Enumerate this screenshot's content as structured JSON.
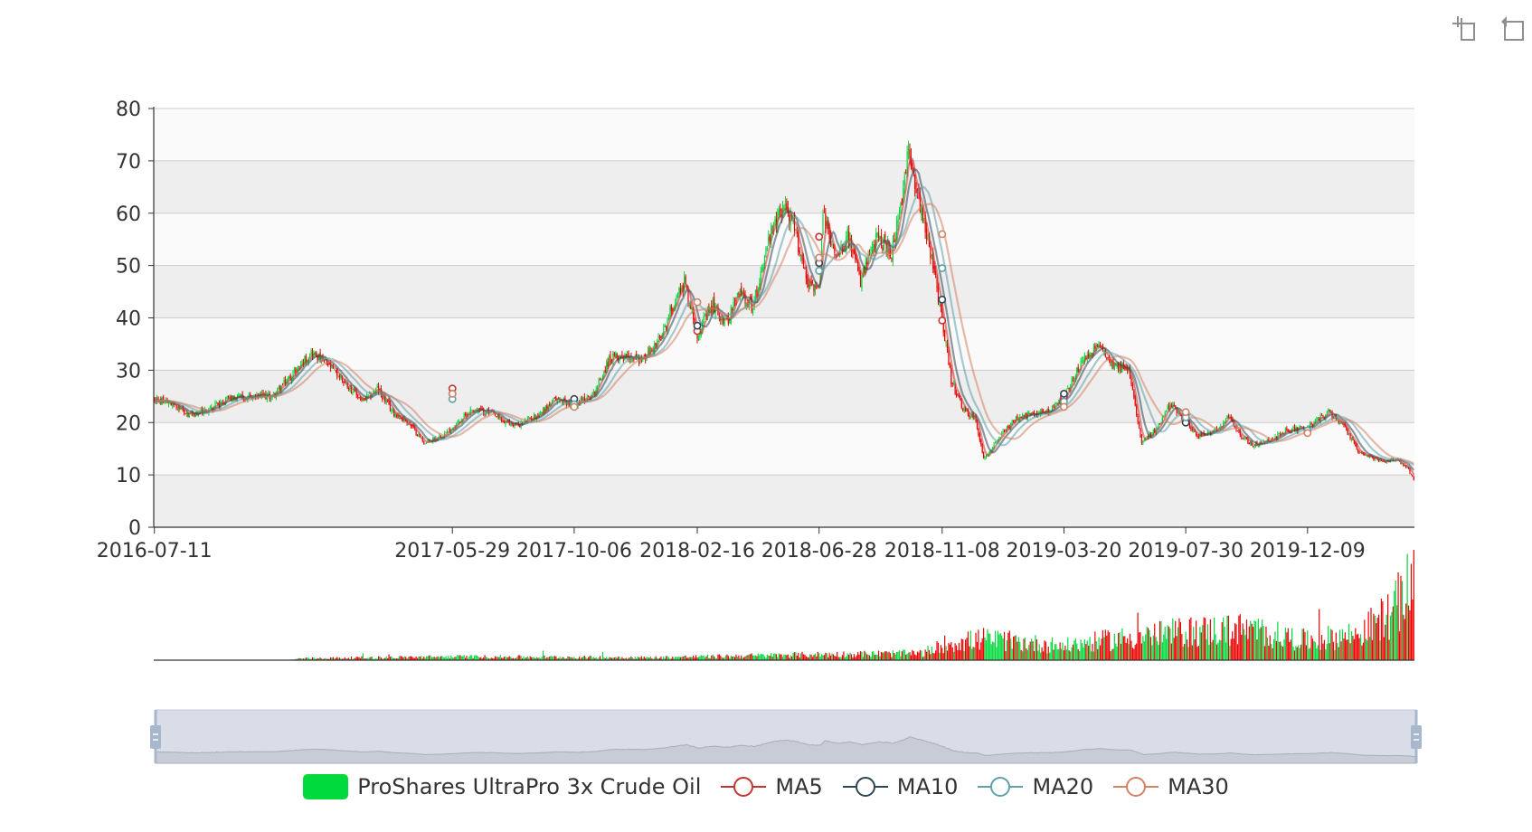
{
  "toolbox": {
    "items": [
      "zoom-icon",
      "restore-icon"
    ]
  },
  "colors": {
    "up": "#00da3c",
    "down": "#ec0000",
    "ma5": "#c23531",
    "ma10": "#2f4554",
    "ma20": "#61a0a8",
    "ma30": "#d48265",
    "grid_band": "#eeeeee",
    "grid_line": "#cccccc",
    "slider_fill": "#d8dde8",
    "slider_border": "#c3cad9"
  },
  "legend": {
    "items": [
      {
        "label": "ProShares UltraPro 3x Crude Oil",
        "kind": "bar",
        "color": "#00da3c"
      },
      {
        "label": "MA5",
        "kind": "line",
        "color": "#c23531"
      },
      {
        "label": "MA10",
        "kind": "line",
        "color": "#2f4554"
      },
      {
        "label": "MA20",
        "kind": "line",
        "color": "#61a0a8"
      },
      {
        "label": "MA30",
        "kind": "line",
        "color": "#d48265"
      }
    ]
  },
  "chart_data": {
    "type": "candlestick",
    "x_start": "2016-07-11",
    "x_end": "2020-04-01",
    "x_tick_labels": [
      "2016-07-11",
      "2017-05-29",
      "2017-10-06",
      "2018-02-16",
      "2018-06-28",
      "2018-11-08",
      "2019-03-20",
      "2019-07-30",
      "2019-12-09"
    ],
    "ylim": [
      0,
      80
    ],
    "y_ticks": [
      0,
      10,
      20,
      30,
      40,
      50,
      60,
      70,
      80
    ],
    "grid": true,
    "legend_position": "bottom",
    "price_path": [
      [
        "2016-07-11",
        24.5
      ],
      [
        "2016-07-28",
        23.5
      ],
      [
        "2016-08-16",
        21.5
      ],
      [
        "2016-09-06",
        22.5
      ],
      [
        "2016-09-27",
        24.5
      ],
      [
        "2016-10-21",
        25.0
      ],
      [
        "2016-11-15",
        25.0
      ],
      [
        "2016-12-06",
        29.0
      ],
      [
        "2016-12-27",
        33.5
      ],
      [
        "2017-01-13",
        31.0
      ],
      [
        "2017-01-31",
        28.0
      ],
      [
        "2017-02-21",
        24.0
      ],
      [
        "2017-03-08",
        26.5
      ],
      [
        "2017-03-24",
        22.0
      ],
      [
        "2017-04-11",
        20.0
      ],
      [
        "2017-04-28",
        16.0
      ],
      [
        "2017-05-16",
        17.5
      ],
      [
        "2017-05-29",
        19.0
      ],
      [
        "2017-06-19",
        22.5
      ],
      [
        "2017-07-07",
        22.0
      ],
      [
        "2017-07-24",
        20.0
      ],
      [
        "2017-08-08",
        19.5
      ],
      [
        "2017-08-29",
        21.5
      ],
      [
        "2017-09-18",
        24.5
      ],
      [
        "2017-10-06",
        23.5
      ],
      [
        "2017-10-27",
        25.5
      ],
      [
        "2017-11-14",
        32.0
      ],
      [
        "2017-12-01",
        33.0
      ],
      [
        "2017-12-20",
        32.0
      ],
      [
        "2018-01-10",
        36.5
      ],
      [
        "2018-01-22",
        42.5
      ],
      [
        "2018-02-02",
        47.0
      ],
      [
        "2018-02-16",
        37.0
      ],
      [
        "2018-03-06",
        42.5
      ],
      [
        "2018-03-20",
        39.0
      ],
      [
        "2018-04-04",
        45.0
      ],
      [
        "2018-04-18",
        42.0
      ],
      [
        "2018-05-03",
        54.0
      ],
      [
        "2018-05-22",
        62.0
      ],
      [
        "2018-06-04",
        56.0
      ],
      [
        "2018-06-15",
        47.0
      ],
      [
        "2018-06-28",
        45.0
      ],
      [
        "2018-07-03",
        60.0
      ],
      [
        "2018-07-16",
        52.0
      ],
      [
        "2018-07-30",
        56.0
      ],
      [
        "2018-08-13",
        47.0
      ],
      [
        "2018-08-30",
        55.5
      ],
      [
        "2018-09-14",
        52.5
      ],
      [
        "2018-09-26",
        62.0
      ],
      [
        "2018-10-03",
        72.0
      ],
      [
        "2018-10-15",
        63.0
      ],
      [
        "2018-10-25",
        54.0
      ],
      [
        "2018-11-08",
        40.0
      ],
      [
        "2018-11-19",
        28.0
      ],
      [
        "2018-11-30",
        22.5
      ],
      [
        "2018-12-14",
        20.5
      ],
      [
        "2018-12-24",
        13.0
      ],
      [
        "2019-01-08",
        17.0
      ],
      [
        "2019-01-25",
        20.5
      ],
      [
        "2019-02-11",
        21.5
      ],
      [
        "2019-02-28",
        22.0
      ],
      [
        "2019-03-20",
        24.5
      ],
      [
        "2019-04-03",
        30.0
      ],
      [
        "2019-04-16",
        33.0
      ],
      [
        "2019-04-29",
        34.5
      ],
      [
        "2019-05-14",
        31.0
      ],
      [
        "2019-05-29",
        30.0
      ],
      [
        "2019-06-12",
        16.5
      ],
      [
        "2019-06-27",
        18.5
      ],
      [
        "2019-07-12",
        23.5
      ],
      [
        "2019-07-30",
        20.5
      ],
      [
        "2019-08-12",
        17.5
      ],
      [
        "2019-08-28",
        18.0
      ],
      [
        "2019-09-13",
        21.0
      ],
      [
        "2019-09-27",
        17.5
      ],
      [
        "2019-10-10",
        15.5
      ],
      [
        "2019-10-28",
        16.5
      ],
      [
        "2019-11-15",
        18.5
      ],
      [
        "2019-12-09",
        19.0
      ],
      [
        "2019-12-31",
        22.0
      ],
      [
        "2020-01-14",
        20.0
      ],
      [
        "2020-02-04",
        14.0
      ],
      [
        "2020-02-27",
        12.5
      ],
      [
        "2020-03-12",
        13.0
      ],
      [
        "2020-03-25",
        11.5
      ],
      [
        "2020-04-01",
        9.0
      ]
    ],
    "ma_markers": [
      {
        "series": "MA5",
        "date": "2017-05-29",
        "value": 26.5
      },
      {
        "series": "MA10",
        "date": "2017-05-29",
        "value": 25.5
      },
      {
        "series": "MA20",
        "date": "2017-05-29",
        "value": 24.5
      },
      {
        "series": "MA30",
        "date": "2017-05-29",
        "value": 25.5
      },
      {
        "series": "MA10",
        "date": "2017-10-06",
        "value": 24.5
      },
      {
        "series": "MA20",
        "date": "2017-10-06",
        "value": 23.5
      },
      {
        "series": "MA30",
        "date": "2017-10-06",
        "value": 23.0
      },
      {
        "series": "MA5",
        "date": "2018-02-16",
        "value": 37.5
      },
      {
        "series": "MA10",
        "date": "2018-02-16",
        "value": 38.5
      },
      {
        "series": "MA30",
        "date": "2018-02-16",
        "value": 43.0
      },
      {
        "series": "MA5",
        "date": "2018-06-28",
        "value": 55.5
      },
      {
        "series": "MA10",
        "date": "2018-06-28",
        "value": 50.5
      },
      {
        "series": "MA20",
        "date": "2018-06-28",
        "value": 49.0
      },
      {
        "series": "MA30",
        "date": "2018-06-28",
        "value": 51.5
      },
      {
        "series": "MA5",
        "date": "2018-11-08",
        "value": 39.5
      },
      {
        "series": "MA10",
        "date": "2018-11-08",
        "value": 43.5
      },
      {
        "series": "MA20",
        "date": "2018-11-08",
        "value": 49.5
      },
      {
        "series": "MA30",
        "date": "2018-11-08",
        "value": 56.0
      },
      {
        "series": "MA5",
        "date": "2019-03-20",
        "value": 25.0
      },
      {
        "series": "MA10",
        "date": "2019-03-20",
        "value": 25.5
      },
      {
        "series": "MA20",
        "date": "2019-03-20",
        "value": 24.0
      },
      {
        "series": "MA30",
        "date": "2019-03-20",
        "value": 23.0
      },
      {
        "series": "MA5",
        "date": "2019-07-30",
        "value": 21.5
      },
      {
        "series": "MA10",
        "date": "2019-07-30",
        "value": 20.0
      },
      {
        "series": "MA20",
        "date": "2019-07-30",
        "value": 21.0
      },
      {
        "series": "MA30",
        "date": "2019-07-30",
        "value": 22.0
      },
      {
        "series": "MA20",
        "date": "2019-12-09",
        "value": 18.5
      },
      {
        "series": "MA30",
        "date": "2019-12-09",
        "value": 18.0
      }
    ],
    "volume_profile": [
      [
        "2016-07-11",
        0.0
      ],
      [
        "2016-12-01",
        0.0
      ],
      [
        "2016-12-15",
        0.02
      ],
      [
        "2017-06-01",
        0.04
      ],
      [
        "2018-01-01",
        0.03
      ],
      [
        "2018-06-01",
        0.06
      ],
      [
        "2018-10-25",
        0.08
      ],
      [
        "2018-11-08",
        0.18
      ],
      [
        "2018-12-24",
        0.24
      ],
      [
        "2019-03-20",
        0.16
      ],
      [
        "2019-05-01",
        0.22
      ],
      [
        "2019-07-30",
        0.32
      ],
      [
        "2019-10-01",
        0.35
      ],
      [
        "2019-12-09",
        0.22
      ],
      [
        "2020-02-01",
        0.3
      ],
      [
        "2020-03-10",
        0.55
      ],
      [
        "2020-04-01",
        0.9
      ]
    ],
    "series": [
      {
        "name": "ProShares UltraPro 3x Crude Oil"
      },
      {
        "name": "MA5",
        "window": 5
      },
      {
        "name": "MA10",
        "window": 10
      },
      {
        "name": "MA20",
        "window": 20
      },
      {
        "name": "MA30",
        "window": 30
      }
    ],
    "datazoom": {
      "start_percent": 0,
      "end_percent": 100
    }
  }
}
